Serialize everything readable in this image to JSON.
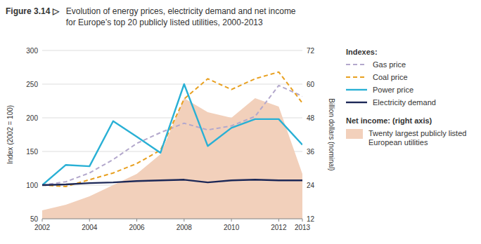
{
  "chart_data": {
    "type": "line",
    "title": "Figure 3.14 ▷",
    "subtitle": [
      "Evolution of energy prices, electricity demand and net income",
      "for Europe’s top 20 publicly listed utilities, 2000-2013"
    ],
    "annotations": [
      "Indexes:",
      "Net income: (right axis)"
    ],
    "x": [
      2002,
      2003,
      2004,
      2005,
      2006,
      2007,
      2008,
      2009,
      2010,
      2011,
      2012,
      2013
    ],
    "series": [
      {
        "name": "Gas price",
        "color": "#b3a8cc",
        "line_style": "dashed",
        "values": [
          100,
          105,
          118,
          138,
          162,
          178,
          192,
          182,
          188,
          202,
          248,
          232
        ]
      },
      {
        "name": "Coal price",
        "color": "#e8a020",
        "line_style": "dashed",
        "values": [
          100,
          98,
          108,
          118,
          132,
          152,
          228,
          258,
          242,
          258,
          268,
          222
        ]
      },
      {
        "name": "Power price",
        "color": "#29b0d5",
        "line_style": "solid",
        "values": [
          100,
          130,
          128,
          195,
          172,
          148,
          250,
          158,
          185,
          198,
          198,
          160
        ]
      },
      {
        "name": "Electricity demand",
        "color": "#1c2857",
        "line_style": "solid",
        "values": [
          100,
          101,
          103,
          104,
          106,
          107,
          108,
          104,
          107,
          108,
          107,
          107
        ]
      },
      {
        "name": "Twenty largest publicly listed European utilities",
        "type": "area",
        "axis": "y2",
        "color": "#f2d0bb",
        "values": [
          15,
          17,
          20,
          24,
          28,
          35,
          55,
          50,
          48,
          55,
          52,
          28
        ]
      }
    ],
    "xlim": [
      2002,
      2013
    ],
    "xticks": [
      2002,
      2004,
      2006,
      2008,
      2010,
      2012,
      2013
    ],
    "ylim": [
      50,
      300
    ],
    "yticks": [
      50,
      100,
      150,
      200,
      250,
      300
    ],
    "y2lim": [
      12,
      72
    ],
    "y2ticks": [
      12,
      24,
      36,
      48,
      60,
      72
    ],
    "ylabel": "Index (2002 = 100)",
    "y2label": "Billion dollars (nominal)",
    "grid": true,
    "legend": "right"
  }
}
